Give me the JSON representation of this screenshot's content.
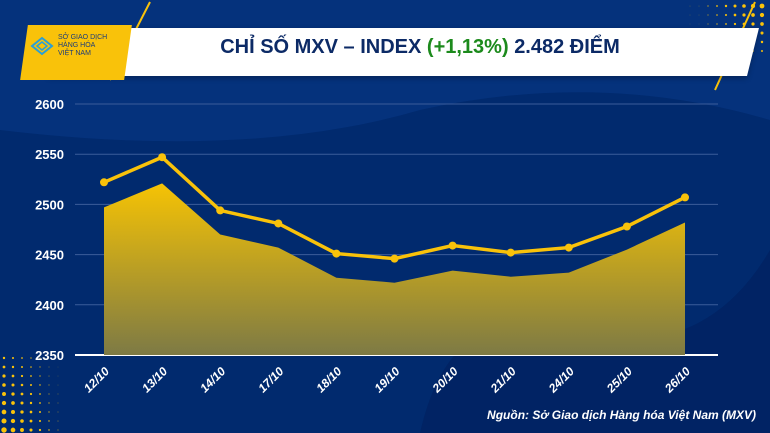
{
  "header": {
    "logo_text": [
      "SỞ GIAO DỊCH",
      "HÀNG HÓA",
      "VIỆT NAM"
    ],
    "title_prefix": "CHỈ SỐ MXV – INDEX",
    "title_change": "(+1,13%)",
    "title_suffix": "2.482 ĐIỂM"
  },
  "colors": {
    "background": "#012a6e",
    "accent": "#f9c20a",
    "change": "#1c8a1c"
  },
  "source": "Nguồn: Sở Giao dịch Hàng hóa Việt Nam (MXV)",
  "chart_data": {
    "type": "area",
    "title": "CHỈ SỐ MXV – INDEX (+1,13%) 2.482 ĐIỂM",
    "categories": [
      "12/10",
      "13/10",
      "14/10",
      "17/10",
      "18/10",
      "19/10",
      "20/10",
      "21/10",
      "24/10",
      "25/10",
      "26/10"
    ],
    "series": [
      {
        "name": "MXV-Index (area)",
        "type": "area",
        "values": [
          2497,
          2521,
          2470,
          2457,
          2427,
          2422,
          2434,
          2428,
          2432,
          2455,
          2482
        ]
      },
      {
        "name": "MXV-Index (line)",
        "type": "line",
        "values": [
          2522,
          2547,
          2494,
          2481,
          2451,
          2446,
          2459,
          2452,
          2457,
          2478,
          2507
        ]
      }
    ],
    "yticks": [
      2350,
      2400,
      2450,
      2500,
      2550,
      2600
    ],
    "ylim": [
      2350,
      2600
    ],
    "grid": true,
    "xlabel": "",
    "ylabel": ""
  }
}
